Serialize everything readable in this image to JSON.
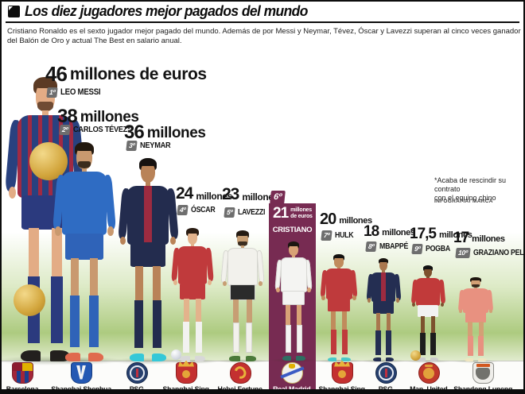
{
  "header": {
    "title": "Los diez jugadores mejor pagados del mundo",
    "intro": "Cristiano Ronaldo es el sexto jugador mejor pagado del mundo. Además de por Messi y Neymar, Tévez, Óscar y Lavezzi superan al cinco veces ganador del Balón de Oro y actual The Best en salario anual."
  },
  "note": {
    "line1": "*Acaba de rescindir su contrato",
    "line2": "con el equipo chino",
    "credit": "INFOGRAFÍA: MARCA"
  },
  "highlight_color": "#772b52",
  "badge_color": "#6e6e6e",
  "players": [
    {
      "id": "messi",
      "rank": "1º",
      "amount": "46",
      "unit": "millones de euros",
      "name": "LEO MESSI",
      "club": "Barcelona",
      "club_logo": "barcelona",
      "kit": {
        "shirt": "#29417f",
        "stripe": "#a02a43",
        "pattern": "barca",
        "shorts": "#2b3a7e",
        "socks": "#2b3a7e",
        "boots": "#23201e",
        "hair": "#5b3a24",
        "skin": "#e3ac85",
        "beard": true
      }
    },
    {
      "id": "tevez",
      "rank": "2º",
      "amount": "38",
      "unit": "millones",
      "name": "CARLOS TÉVEZ*",
      "club": "Shanghai Shenhua",
      "club_logo": "shenhua",
      "kit": {
        "shirt": "#2f6cc3",
        "shorts": "#2f63b8",
        "socks": "#2f63b8",
        "boots": "#e06a4e",
        "hair": "#23190f",
        "skin": "#c9996f",
        "beard": true
      }
    },
    {
      "id": "neymar",
      "rank": "3º",
      "amount": "36",
      "unit": "millones",
      "name": "NEYMAR",
      "club": "PSG",
      "club_logo": "psg",
      "kit": {
        "shirt": "#232c4e",
        "stripe": "#9d2b40",
        "shorts": "#232c4e",
        "socks": "#232c4e",
        "boots": "#35c8d8",
        "hair": "#161210",
        "skin": "#b98358"
      }
    },
    {
      "id": "oscar",
      "rank": "4º",
      "amount": "24",
      "unit": "millones",
      "name": "ÓSCAR",
      "club": "Shanghai Sipg",
      "club_logo": "sipg",
      "kit": {
        "shirt": "#c03a3c",
        "shorts": "#c03a3c",
        "socks": "#f2f2f0",
        "boots": "#d8d8d8",
        "hair": "#2a1c12",
        "skin": "#e3b38c",
        "ball": "white"
      }
    },
    {
      "id": "lavezzi",
      "rank": "5º",
      "amount": "23",
      "unit": "millones",
      "name": "LAVEZZI",
      "club": "Hebei Fortune",
      "club_logo": "hebei",
      "kit": {
        "shirt": "#f2f1ec",
        "edge": "#d5d5cf",
        "shorts": "#2b2b2b",
        "socks": "#f2f1ec",
        "boots": "#4b7a3a",
        "hair": "#241a12",
        "skin": "#c79e74",
        "beard": true
      }
    },
    {
      "id": "cristiano",
      "rank": "6º",
      "amount": "21",
      "unit": "millones de euros",
      "name": "CRISTIANO",
      "club": "Real Madrid",
      "club_logo": "realmadrid",
      "highlighted": true,
      "kit": {
        "shirt": "#f4f4f2",
        "edge": "#d8d8d4",
        "shorts": "#f4f4f2",
        "socks": "#f4f4f2",
        "boots": "#2e6e62",
        "hair": "#1c1611",
        "skin": "#d8a276"
      }
    },
    {
      "id": "hulk",
      "rank": "7º",
      "amount": "20",
      "unit": "millones",
      "name": "HULK",
      "club": "Shanghai Sipg",
      "club_logo": "sipg",
      "kit": {
        "shirt": "#bf3a3c",
        "shorts": "#bf3a3c",
        "socks": "#bf3a3c",
        "boots": "#49c8c8",
        "hair": "#141210",
        "skin": "#c08b5c"
      }
    },
    {
      "id": "mbappe",
      "rank": "8º",
      "amount": "18",
      "unit": "millones",
      "name": "MBAPPÉ",
      "club": "PSG",
      "club_logo": "psg",
      "kit": {
        "shirt": "#242e52",
        "stripe": "#9d2b40",
        "shorts": "#242e52",
        "socks": "#242e52",
        "boots": "#242e52",
        "hair": "#191410",
        "skin": "#a9774e"
      }
    },
    {
      "id": "pogba",
      "rank": "9º",
      "amount": "17,5",
      "unit": "millones",
      "name": "POGBA",
      "club": "Man. United",
      "club_logo": "manutd",
      "kit": {
        "shirt": "#c13a3a",
        "shorts": "#f2f2f2",
        "socks": "#1d1d1d",
        "boots": "#cccccc",
        "hair": "#121212",
        "skin": "#7d512e",
        "ball": "gold"
      }
    },
    {
      "id": "pelle",
      "rank": "10º",
      "amount": "17",
      "unit": "millones",
      "name": "GRAZIANO PELLÈ",
      "club": "Shandong Luneng",
      "club_logo": "luneng",
      "kit": {
        "shirt": "#e89180",
        "shorts": "#e89180",
        "socks": "#e89180",
        "boots": "#f0e6c0",
        "hair": "#1d150e",
        "skin": "#d3a075",
        "beard": true
      }
    }
  ],
  "chart_data": {
    "type": "bar",
    "title": "Los diez jugadores mejor pagados del mundo",
    "subtitle": "Cristiano Ronaldo es el sexto jugador mejor pagado del mundo. Además de por Messi y Neymar, Tévez, Óscar y Lavezzi superan al cinco veces ganador del Balón de Oro y actual The Best en salario anual.",
    "categories": [
      "Leo Messi",
      "Carlos Tévez",
      "Neymar",
      "Óscar",
      "Lavezzi",
      "Cristiano",
      "Hulk",
      "Mbappé",
      "Pogba",
      "Graziano Pellè"
    ],
    "values": [
      46,
      38,
      36,
      24,
      23,
      21,
      20,
      18,
      17.5,
      17
    ],
    "unit": "millones de euros (salario anual)",
    "clubs": [
      "Barcelona",
      "Shanghai Shenhua",
      "PSG",
      "Shanghai Sipg",
      "Hebei Fortune",
      "Real Madrid",
      "Shanghai Sipg",
      "PSG",
      "Man. United",
      "Shandong Luneng"
    ],
    "highlighted_category": "Cristiano",
    "annotation": "*Acaba de rescindir su contrato con el equipo chino",
    "credit": "INFOGRAFÍA: MARCA"
  }
}
